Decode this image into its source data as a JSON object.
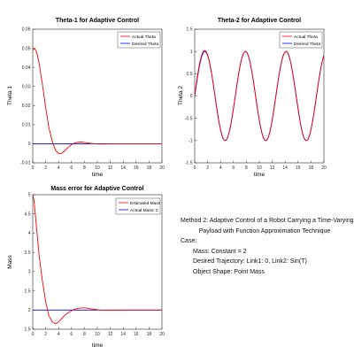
{
  "chart_data": [
    {
      "type": "line",
      "title": "Theta-1 for Adaptive Control",
      "xlabel": "time",
      "ylabel": "Theta 1",
      "xlim": [
        0,
        20
      ],
      "ylim": [
        -0.01,
        0.06
      ],
      "xticks": [
        0,
        2,
        4,
        6,
        8,
        10,
        12,
        14,
        16,
        18,
        20
      ],
      "yticks": [
        -0.01,
        0,
        0.01,
        0.02,
        0.03,
        0.04,
        0.05,
        0.06
      ],
      "ytick_labels": [
        "-0.01",
        "0",
        "0.01",
        "0.02",
        "0.03",
        "0.04",
        "0.05",
        "0.06"
      ],
      "grid": false,
      "legend_position": "top-right",
      "series": [
        {
          "name": "Actual Theta",
          "color": "#ff0000",
          "x": [
            0,
            0.3,
            0.6,
            1.0,
            1.5,
            2.0,
            2.5,
            3.0,
            3.5,
            4.0,
            4.5,
            5.0,
            5.5,
            6.0,
            6.5,
            7.0,
            7.5,
            8.0,
            8.5,
            9.0,
            9.5,
            10.0,
            10.5,
            11.0,
            12.0,
            13.0,
            14.0,
            16.0,
            18.0,
            20.0
          ],
          "y": [
            0.049,
            0.05,
            0.048,
            0.042,
            0.031,
            0.019,
            0.0085,
            0.0015,
            -0.0032,
            -0.0052,
            -0.005,
            -0.0035,
            -0.0018,
            -0.0005,
            0.0004,
            0.0008,
            0.0009,
            0.0007,
            0.0004,
            0.0002,
            5e-05,
            -5e-05,
            -0.0001,
            -0.0001,
            -5e-05,
            0,
            0,
            0,
            0,
            0
          ]
        },
        {
          "name": "Desired Theta",
          "color": "#0000ff",
          "x": [
            0,
            20
          ],
          "y": [
            0,
            0
          ]
        }
      ]
    },
    {
      "type": "line",
      "title": "Theta-2 for Adaptive Control",
      "xlabel": "time",
      "ylabel": "Theta 2",
      "xlim": [
        0,
        20
      ],
      "ylim": [
        -1.5,
        1.5
      ],
      "xticks": [
        0,
        2,
        4,
        6,
        8,
        10,
        12,
        14,
        16,
        18,
        20
      ],
      "yticks": [
        -1.5,
        -1,
        -0.5,
        0,
        0.5,
        1,
        1.5
      ],
      "ytick_labels": [
        "-1.5",
        "-1",
        "-0.5",
        "0",
        "0.5",
        "1",
        "1.5"
      ],
      "grid": false,
      "legend_position": "top-right",
      "series": [
        {
          "name": "Actual Theta",
          "color": "#ff0000",
          "function": "sin(t) with small initial transient, peak ≈ 1.03 near t = 1.5"
        },
        {
          "name": "Desired Theta",
          "color": "#0000ff",
          "function": "sin(t)"
        }
      ]
    },
    {
      "type": "line",
      "title": "Mass error for Adaptive Control",
      "xlabel": "time",
      "ylabel": "Mass",
      "xlim": [
        0,
        20
      ],
      "ylim": [
        1.5,
        5
      ],
      "xticks": [
        0,
        2,
        4,
        6,
        8,
        10,
        12,
        14,
        16,
        18,
        20
      ],
      "yticks": [
        1.5,
        2,
        2.5,
        3,
        3.5,
        4,
        4.5,
        5
      ],
      "ytick_labels": [
        "1.5",
        "2",
        "2.5",
        "3",
        "3.5",
        "4",
        "4.5",
        "5"
      ],
      "grid": false,
      "legend_position": "top-right",
      "series": [
        {
          "name": "Estimated Mass",
          "color": "#ff0000",
          "x": [
            0,
            0.2,
            0.5,
            1.0,
            1.5,
            2.0,
            2.5,
            3.0,
            3.5,
            4.0,
            4.5,
            5.0,
            5.5,
            6.0,
            6.5,
            7.0,
            7.5,
            8.0,
            8.5,
            9.0,
            9.5,
            10.0,
            10.5,
            11.0,
            12.0,
            13.0,
            14.0,
            16.0,
            18.0,
            20.0
          ],
          "y": [
            5.0,
            4.85,
            4.3,
            3.4,
            2.75,
            2.22,
            1.85,
            1.7,
            1.64,
            1.69,
            1.78,
            1.87,
            1.93,
            1.98,
            2.02,
            2.045,
            2.055,
            2.055,
            2.045,
            2.03,
            2.018,
            2.008,
            2.0,
            1.996,
            1.995,
            1.998,
            2.0,
            2.0,
            2.0,
            2.0
          ]
        },
        {
          "name": "Actual Mass: 2",
          "color": "#0000ff",
          "x": [
            0,
            20
          ],
          "y": [
            2,
            2
          ]
        }
      ]
    }
  ],
  "description": {
    "line1": "Method 2: Adaptive Control of a Robot Carrying a Time-Varying",
    "line2": "Payload with Function Approximation Technique",
    "line3": "Case:",
    "line4": "Mass: Constant = 2",
    "line5": "Desired Trajectory: Link1: 0, Link2: Sin(T)",
    "line6": "Object Shape: Point Mass"
  }
}
